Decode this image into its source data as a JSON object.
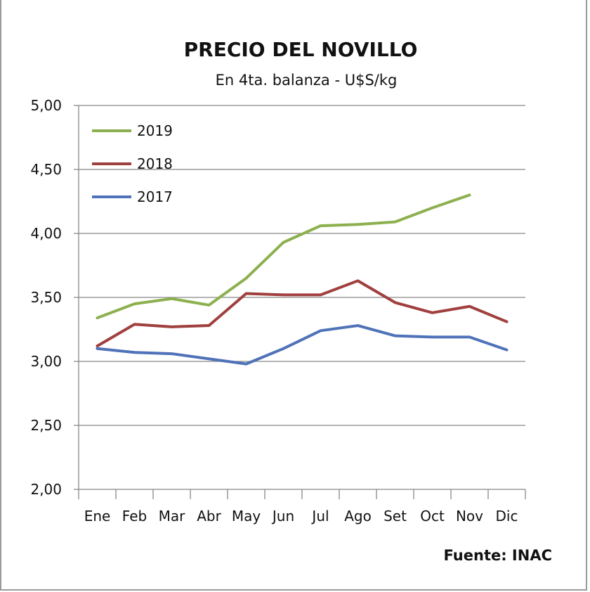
{
  "chart_data": {
    "type": "line",
    "title": "PRECIO DEL NOVILLO",
    "subtitle": "En 4ta. balanza - U$S/kg",
    "xlabel": "",
    "ylabel": "",
    "ylim": [
      2.0,
      5.0
    ],
    "yticks": [
      "2,00",
      "2,50",
      "3,00",
      "3,50",
      "4,00",
      "4,50",
      "5,00"
    ],
    "ytick_values": [
      2.0,
      2.5,
      3.0,
      3.5,
      4.0,
      4.5,
      5.0
    ],
    "categories": [
      "Ene",
      "Feb",
      "Mar",
      "Abr",
      "May",
      "Jun",
      "Jul",
      "Ago",
      "Set",
      "Oct",
      "Nov",
      "Dic"
    ],
    "grid": true,
    "legend_position": "top-left",
    "series": [
      {
        "name": "2019",
        "color": "#8db04f",
        "values": [
          3.34,
          3.45,
          3.49,
          3.44,
          3.65,
          3.93,
          4.06,
          4.07,
          4.09,
          4.2,
          4.3,
          null
        ]
      },
      {
        "name": "2018",
        "color": "#a0403e",
        "values": [
          3.12,
          3.29,
          3.27,
          3.28,
          3.53,
          3.52,
          3.52,
          3.63,
          3.46,
          3.38,
          3.43,
          3.31
        ]
      },
      {
        "name": "2017",
        "color": "#4f72b8",
        "values": [
          3.1,
          3.07,
          3.06,
          3.02,
          2.98,
          3.1,
          3.24,
          3.28,
          3.2,
          3.19,
          3.19,
          3.09
        ]
      }
    ],
    "source": "Fuente: INAC"
  }
}
